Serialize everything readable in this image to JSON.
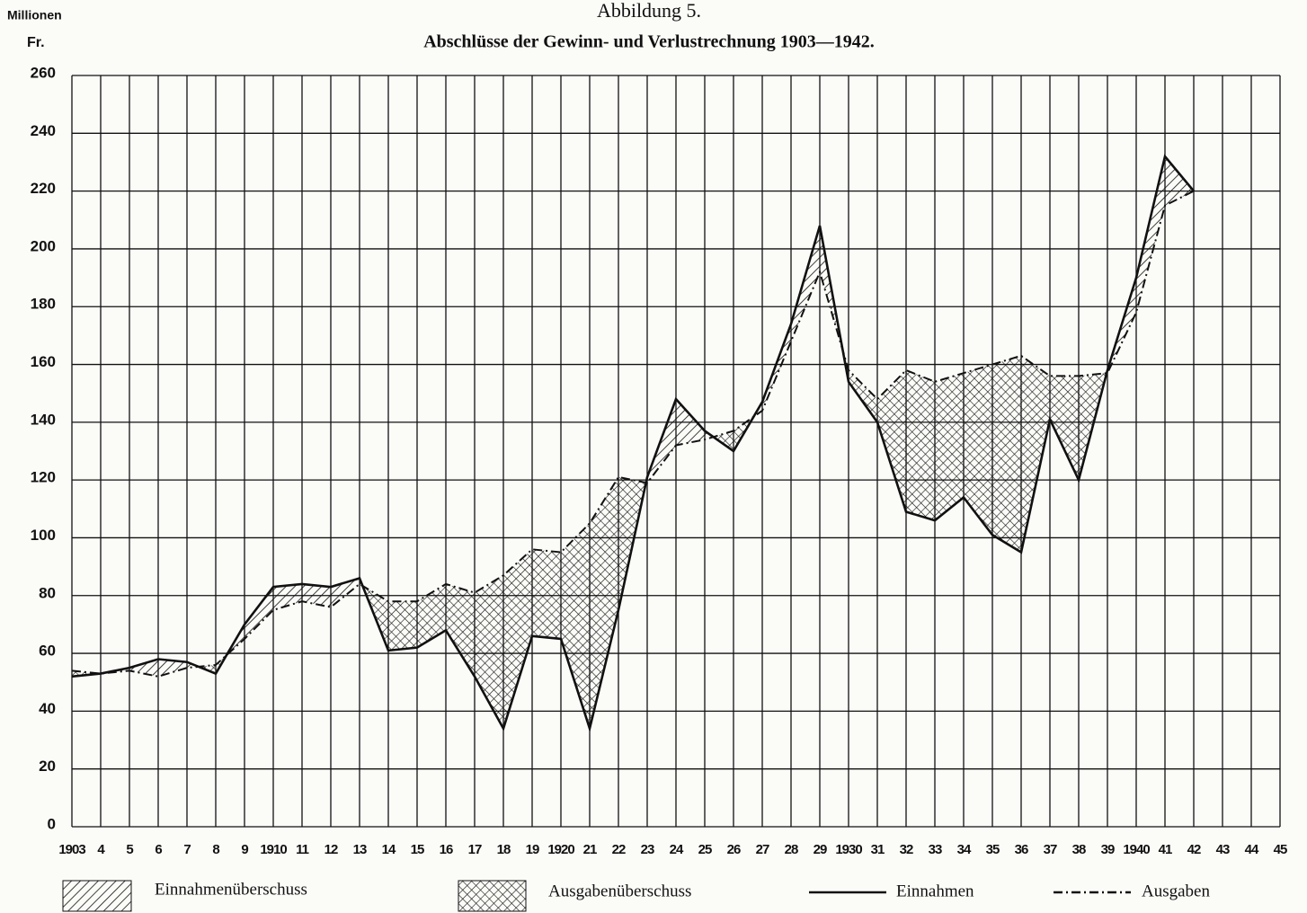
{
  "chart_data": {
    "type": "line",
    "title": "Abbildung 5.",
    "subtitle": "Abschlüsse der Gewinn- und Verlustrechnung 1903—1942.",
    "y_label": [
      "Millionen",
      "Fr."
    ],
    "categories": [
      "1903",
      "4",
      "5",
      "6",
      "7",
      "8",
      "9",
      "1910",
      "11",
      "12",
      "13",
      "14",
      "15",
      "16",
      "17",
      "18",
      "19",
      "1920",
      "21",
      "22",
      "23",
      "24",
      "25",
      "26",
      "27",
      "28",
      "29",
      "1930",
      "31",
      "32",
      "33",
      "34",
      "35",
      "36",
      "37",
      "38",
      "39",
      "1940",
      "41",
      "42",
      "43",
      "44",
      "45"
    ],
    "series": [
      {
        "name": "Einnahmen",
        "color": "#111111",
        "style": "solid",
        "values": [
          52,
          53,
          55,
          58,
          57,
          53,
          70,
          83,
          84,
          83,
          86,
          61,
          62,
          68,
          52,
          34,
          66,
          65,
          34,
          75,
          121,
          148,
          137,
          130,
          147,
          174,
          208,
          154,
          140,
          109,
          106,
          114,
          101,
          95,
          141,
          120,
          158,
          190,
          232,
          220,
          null,
          null,
          null
        ]
      },
      {
        "name": "Ausgaben",
        "color": "#111111",
        "style": "dashdot",
        "values": [
          54,
          53,
          54,
          52,
          55,
          56,
          65,
          75,
          78,
          76,
          84,
          78,
          78,
          84,
          81,
          87,
          96,
          95,
          105,
          121,
          119,
          132,
          134,
          137,
          144,
          168,
          192,
          158,
          148,
          158,
          154,
          157,
          160,
          163,
          156,
          156,
          157,
          178,
          215,
          220,
          null,
          null,
          null
        ]
      }
    ],
    "fill_legend": [
      "Einnahmenüberschuss",
      "Ausgabenüberschuss"
    ],
    "ylim": [
      0,
      260
    ],
    "yticks": [
      0,
      20,
      40,
      60,
      80,
      100,
      120,
      140,
      160,
      180,
      200,
      220,
      240,
      260
    ],
    "grid": true
  }
}
